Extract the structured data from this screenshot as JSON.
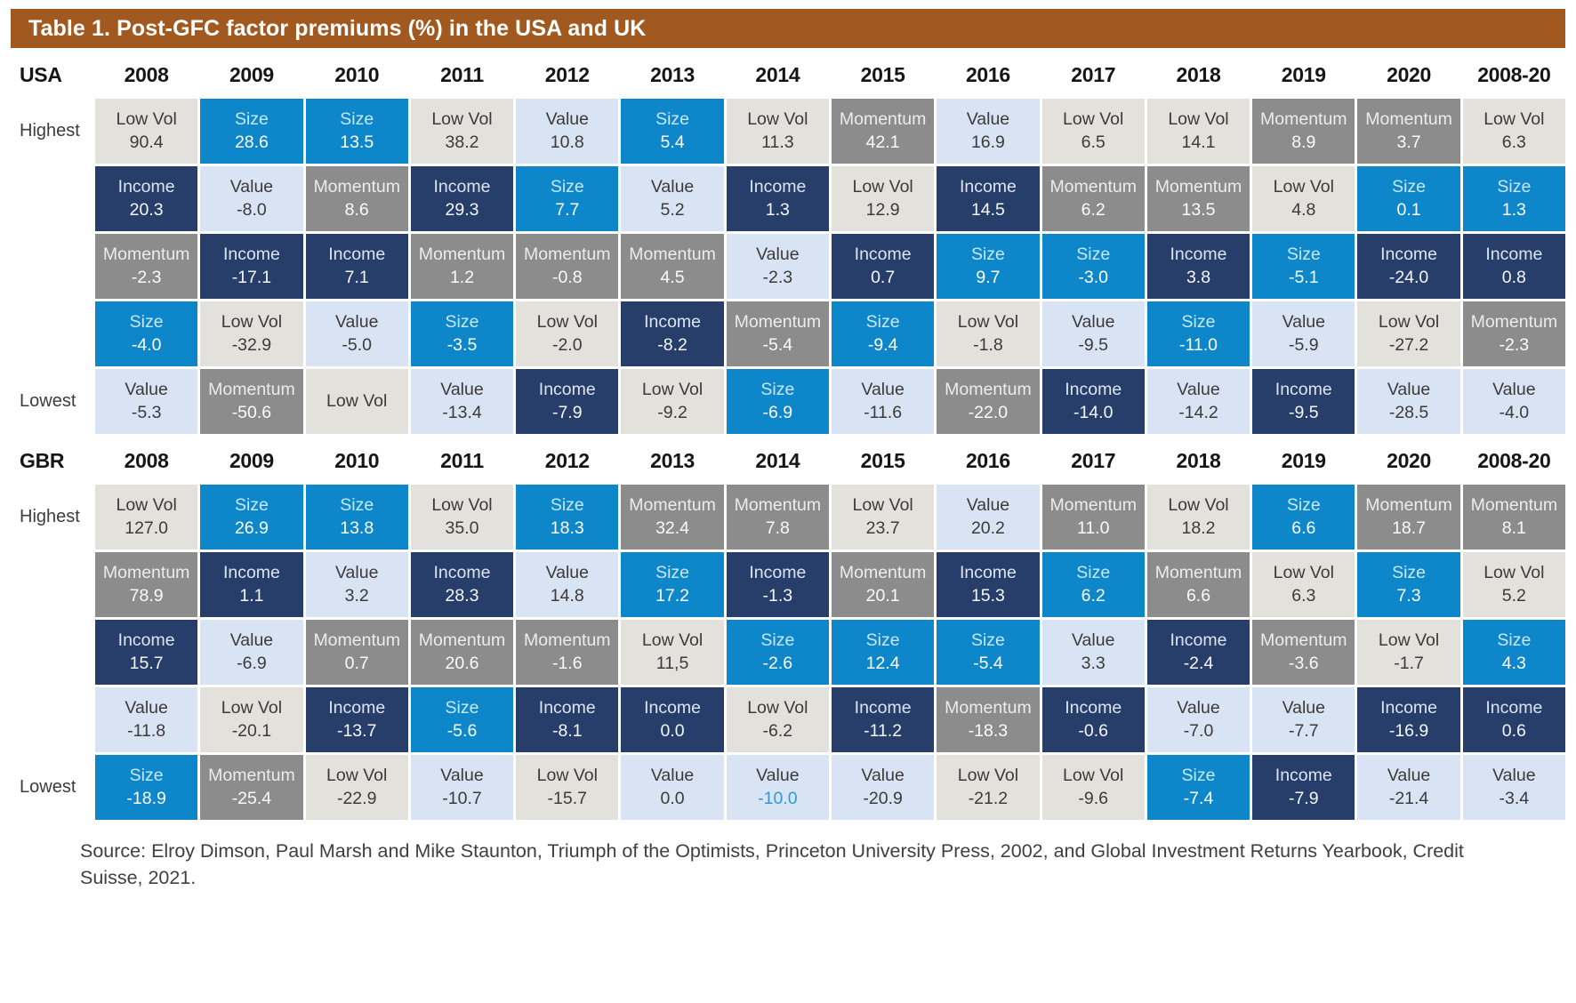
{
  "title": "Table 1. Post-GFC factor premiums (%) in the USA and UK",
  "source": "Source: Elroy Dimson, Paul Marsh and Mike Staunton, Triumph of the Optimists, Princeton University Press, 2002, and Global Investment Returns Yearbook, Credit Suisse, 2021.",
  "colors": {
    "title_bar": "#A2591F",
    "highlight_value": "#2E9BD6",
    "factors": {
      "Low Vol": {
        "bg": "#E2E1DC",
        "name_fg": "#3B3B3A",
        "val_fg": "#3B3B3A"
      },
      "Size": {
        "bg": "#0D87CA",
        "name_fg": "#C8E7F8",
        "val_fg": "#FDFEFF"
      },
      "Value": {
        "bg": "#D8E3F3",
        "name_fg": "#3B3B3A",
        "val_fg": "#3B3B3A"
      },
      "Income": {
        "bg": "#273E6B",
        "name_fg": "#DDE5F2",
        "val_fg": "#F4F6FA"
      },
      "Momentum": {
        "bg": "#8C8C8C",
        "name_fg": "#ECECEC",
        "val_fg": "#FAFAFA"
      }
    }
  },
  "row_labels": [
    "Highest",
    "",
    "",
    "",
    "Lowest"
  ],
  "years": [
    "2008",
    "2009",
    "2010",
    "2011",
    "2012",
    "2013",
    "2014",
    "2015",
    "2016",
    "2017",
    "2018",
    "2019",
    "2020",
    "2008-20"
  ],
  "sections": [
    {
      "label": "USA",
      "rows": [
        [
          [
            "Low Vol",
            "90.4"
          ],
          [
            "Size",
            "28.6"
          ],
          [
            "Size",
            "13.5"
          ],
          [
            "Low Vol",
            "38.2"
          ],
          [
            "Value",
            "10.8"
          ],
          [
            "Size",
            "5.4"
          ],
          [
            "Low Vol",
            "11.3"
          ],
          [
            "Momentum",
            "42.1"
          ],
          [
            "Value",
            "16.9"
          ],
          [
            "Low Vol",
            "6.5"
          ],
          [
            "Low Vol",
            "14.1"
          ],
          [
            "Momentum",
            "8.9"
          ],
          [
            "Momentum",
            "3.7"
          ],
          [
            "Low Vol",
            "6.3"
          ]
        ],
        [
          [
            "Income",
            "20.3"
          ],
          [
            "Value",
            "-8.0"
          ],
          [
            "Momentum",
            "8.6"
          ],
          [
            "Income",
            "29.3"
          ],
          [
            "Size",
            "7.7"
          ],
          [
            "Value",
            "5.2"
          ],
          [
            "Income",
            "1.3"
          ],
          [
            "Low Vol",
            "12.9"
          ],
          [
            "Income",
            "14.5"
          ],
          [
            "Momentum",
            "6.2"
          ],
          [
            "Momentum",
            "13.5"
          ],
          [
            "Low Vol",
            "4.8"
          ],
          [
            "Size",
            "0.1"
          ],
          [
            "Size",
            "1.3"
          ]
        ],
        [
          [
            "Momentum",
            "-2.3"
          ],
          [
            "Income",
            "-17.1"
          ],
          [
            "Income",
            "7.1"
          ],
          [
            "Momentum",
            "1.2"
          ],
          [
            "Momentum",
            "-0.8"
          ],
          [
            "Momentum",
            "4.5"
          ],
          [
            "Value",
            "-2.3"
          ],
          [
            "Income",
            "0.7"
          ],
          [
            "Size",
            "9.7"
          ],
          [
            "Size",
            "-3.0"
          ],
          [
            "Income",
            "3.8"
          ],
          [
            "Size",
            "-5.1"
          ],
          [
            "Income",
            "-24.0"
          ],
          [
            "Income",
            "0.8"
          ]
        ],
        [
          [
            "Size",
            "-4.0"
          ],
          [
            "Low Vol",
            "-32.9"
          ],
          [
            "Value",
            "-5.0"
          ],
          [
            "Size",
            "-3.5"
          ],
          [
            "Low Vol",
            "-2.0"
          ],
          [
            "Income",
            "-8.2"
          ],
          [
            "Momentum",
            "-5.4"
          ],
          [
            "Size",
            "-9.4"
          ],
          [
            "Low Vol",
            "-1.8"
          ],
          [
            "Value",
            "-9.5"
          ],
          [
            "Size",
            "-11.0"
          ],
          [
            "Value",
            "-5.9"
          ],
          [
            "Low Vol",
            "-27.2"
          ],
          [
            "Momentum",
            "-2.3"
          ]
        ],
        [
          [
            "Value",
            "-5.3"
          ],
          [
            "Momentum",
            "-50.6"
          ],
          [
            "Low Vol",
            ""
          ],
          [
            "Value",
            "-13.4"
          ],
          [
            "Income",
            "-7.9"
          ],
          [
            "Low Vol",
            "-9.2"
          ],
          [
            "Size",
            "-6.9"
          ],
          [
            "Value",
            "-11.6"
          ],
          [
            "Momentum",
            "-22.0"
          ],
          [
            "Income",
            "-14.0"
          ],
          [
            "Value",
            "-14.2"
          ],
          [
            "Income",
            "-9.5"
          ],
          [
            "Value",
            "-28.5"
          ],
          [
            "Value",
            "-4.0"
          ]
        ]
      ]
    },
    {
      "label": "GBR",
      "rows": [
        [
          [
            "Low Vol",
            "127.0"
          ],
          [
            "Size",
            "26.9"
          ],
          [
            "Size",
            "13.8"
          ],
          [
            "Low Vol",
            "35.0"
          ],
          [
            "Size",
            "18.3"
          ],
          [
            "Momentum",
            "32.4"
          ],
          [
            "Momentum",
            "7.8"
          ],
          [
            "Low Vol",
            "23.7"
          ],
          [
            "Value",
            "20.2"
          ],
          [
            "Momentum",
            "11.0"
          ],
          [
            "Low Vol",
            "18.2"
          ],
          [
            "Size",
            "6.6"
          ],
          [
            "Momentum",
            "18.7"
          ],
          [
            "Momentum",
            "8.1"
          ]
        ],
        [
          [
            "Momentum",
            "78.9"
          ],
          [
            "Income",
            "1.1"
          ],
          [
            "Value",
            "3.2"
          ],
          [
            "Income",
            "28.3"
          ],
          [
            "Value",
            "14.8"
          ],
          [
            "Size",
            "17.2"
          ],
          [
            "Income",
            "-1.3"
          ],
          [
            "Momentum",
            "20.1"
          ],
          [
            "Income",
            "15.3"
          ],
          [
            "Size",
            "6.2"
          ],
          [
            "Momentum",
            "6.6"
          ],
          [
            "Low Vol",
            "6.3"
          ],
          [
            "Size",
            "7.3"
          ],
          [
            "Low Vol",
            "5.2"
          ]
        ],
        [
          [
            "Income",
            "15.7"
          ],
          [
            "Value",
            "-6.9"
          ],
          [
            "Momentum",
            "0.7"
          ],
          [
            "Momentum",
            "20.6"
          ],
          [
            "Momentum",
            "-1.6"
          ],
          [
            "Low Vol",
            "11,5"
          ],
          [
            "Size",
            "-2.6"
          ],
          [
            "Size",
            "12.4"
          ],
          [
            "Size",
            "-5.4"
          ],
          [
            "Value",
            "3.3"
          ],
          [
            "Income",
            "-2.4"
          ],
          [
            "Momentum",
            "-3.6"
          ],
          [
            "Low Vol",
            "-1.7"
          ],
          [
            "Size",
            "4.3"
          ]
        ],
        [
          [
            "Value",
            "-11.8"
          ],
          [
            "Low Vol",
            "-20.1"
          ],
          [
            "Income",
            "-13.7"
          ],
          [
            "Size",
            "-5.6"
          ],
          [
            "Income",
            "-8.1"
          ],
          [
            "Income",
            "0.0"
          ],
          [
            "Low Vol",
            "-6.2"
          ],
          [
            "Income",
            "-11.2"
          ],
          [
            "Momentum",
            "-18.3"
          ],
          [
            "Income",
            "-0.6"
          ],
          [
            "Value",
            "-7.0"
          ],
          [
            "Value",
            "-7.7"
          ],
          [
            "Income",
            "-16.9"
          ],
          [
            "Income",
            "0.6"
          ]
        ],
        [
          [
            "Size",
            "-18.9"
          ],
          [
            "Momentum",
            "-25.4"
          ],
          [
            "Low Vol",
            "-22.9"
          ],
          [
            "Value",
            "-10.7"
          ],
          [
            "Low Vol",
            "-15.7"
          ],
          [
            "Value",
            "0.0"
          ],
          [
            "Value",
            "-10.0",
            "hl"
          ],
          [
            "Value",
            "-20.9"
          ],
          [
            "Low Vol",
            "-21.2"
          ],
          [
            "Low Vol",
            "-9.6"
          ],
          [
            "Size",
            "-7.4"
          ],
          [
            "Income",
            "-7.9"
          ],
          [
            "Value",
            "-21.4"
          ],
          [
            "Value",
            "-3.4"
          ]
        ]
      ]
    }
  ]
}
